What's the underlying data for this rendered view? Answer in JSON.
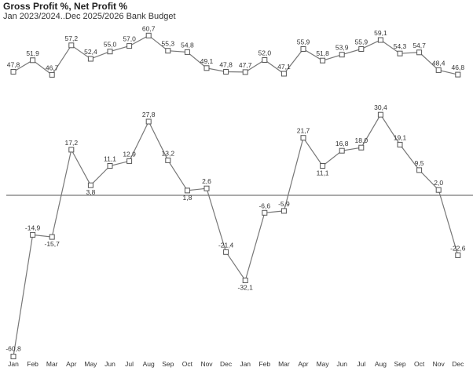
{
  "chart_data": {
    "type": "line",
    "title": "Gross Profit %, Net Profit %",
    "subtitle": "Jan 2023/2024..Dec 2025/2026 Bank Budget",
    "categories": [
      "Jan",
      "Feb",
      "Mar",
      "Apr",
      "May",
      "Jun",
      "Jul",
      "Aug",
      "Sep",
      "Oct",
      "Nov",
      "Dec",
      "Jan",
      "Feb",
      "Mar",
      "Apr",
      "May",
      "Jun",
      "Jul",
      "Aug",
      "Sep",
      "Oct",
      "Nov",
      "Dec"
    ],
    "series": [
      {
        "values": [
          47.8,
          51.9,
          46.7,
          57.2,
          52.4,
          55.0,
          57.0,
          60.7,
          55.3,
          54.8,
          49.1,
          47.8,
          47.7,
          52.0,
          47.1,
          55.9,
          51.8,
          53.9,
          55.9,
          59.1,
          54.3,
          54.7,
          48.4,
          46.8
        ],
        "labels": [
          "47,8",
          "51,9",
          "46,7",
          "57,2",
          "52,4",
          "55,0",
          "57,0",
          "60,7",
          "55,3",
          "54,8",
          "49,1",
          "47,8",
          "47,7",
          "52,0",
          "47,1",
          "55,9",
          "51,8",
          "53,9",
          "55,9",
          "59,1",
          "54,3",
          "54,7",
          "48,4",
          "46,8"
        ]
      },
      {
        "values": [
          -60.8,
          -14.9,
          -15.7,
          17.2,
          3.8,
          11.1,
          12.9,
          27.8,
          13.2,
          1.8,
          2.6,
          -21.4,
          -32.1,
          -6.6,
          -5.9,
          21.7,
          11.1,
          16.8,
          18.0,
          30.4,
          19.1,
          9.5,
          2.0,
          -22.6
        ],
        "labels": [
          "-60,8",
          "-14,9",
          "-15,7",
          "17,2",
          "3,8",
          "11,1",
          "12,9",
          "27,8",
          "13,2",
          "1,8",
          "2,6",
          "-21,4",
          "-32,1",
          "-6,6",
          "-5,9",
          "21,7",
          "11,1",
          "16,8",
          "18,0",
          "30,4",
          "19,1",
          "9,5",
          "2,0",
          "-22,6"
        ]
      }
    ],
    "legend": "none",
    "grid": false,
    "zero_line": true,
    "colors": {
      "line": "#777777",
      "marker_stroke": "#555555",
      "marker_fill": "#ffffff",
      "zero_line": "#555555",
      "text": "#333333"
    }
  }
}
